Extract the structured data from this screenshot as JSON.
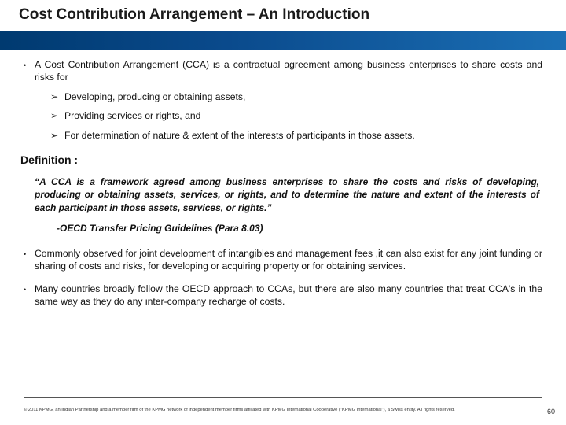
{
  "title": "Cost Contribution Arrangement – An Introduction",
  "intro": "A Cost Contribution Arrangement (CCA) is a contractual agreement among business enterprises to share costs and risks for",
  "sub_items": [
    "Developing, producing or obtaining assets,",
    "Providing  services or rights, and",
    "For determination of nature & extent of the interests of participants in those assets."
  ],
  "definition_label": "Definition :",
  "definition_quote": "“A CCA is a framework agreed among business enterprises to share the costs and risks of developing, producing or obtaining assets, services, or rights, and to determine the nature and extent of the interests of each participant in those assets, services, or rights.”",
  "attribution": "-OECD Transfer Pricing Guidelines (Para 8.03)",
  "lower_bullets": [
    "Commonly observed for joint development of intangibles and  management fees ,it can also exist for any joint funding or sharing of costs and risks, for developing or acquiring property or for obtaining services.",
    "Many countries broadly follow the OECD approach to CCAs, but there are also many countries that treat CCA's in the same way as they do any inter-company recharge of costs."
  ],
  "footer": "© 2011 KPMG, an Indian Partnership and a member firm of the KPMG network of independent member firms affiliated with KPMG International Cooperative (\"KPMG International\"), a Swiss entity. All rights reserved.",
  "page_number": "60"
}
